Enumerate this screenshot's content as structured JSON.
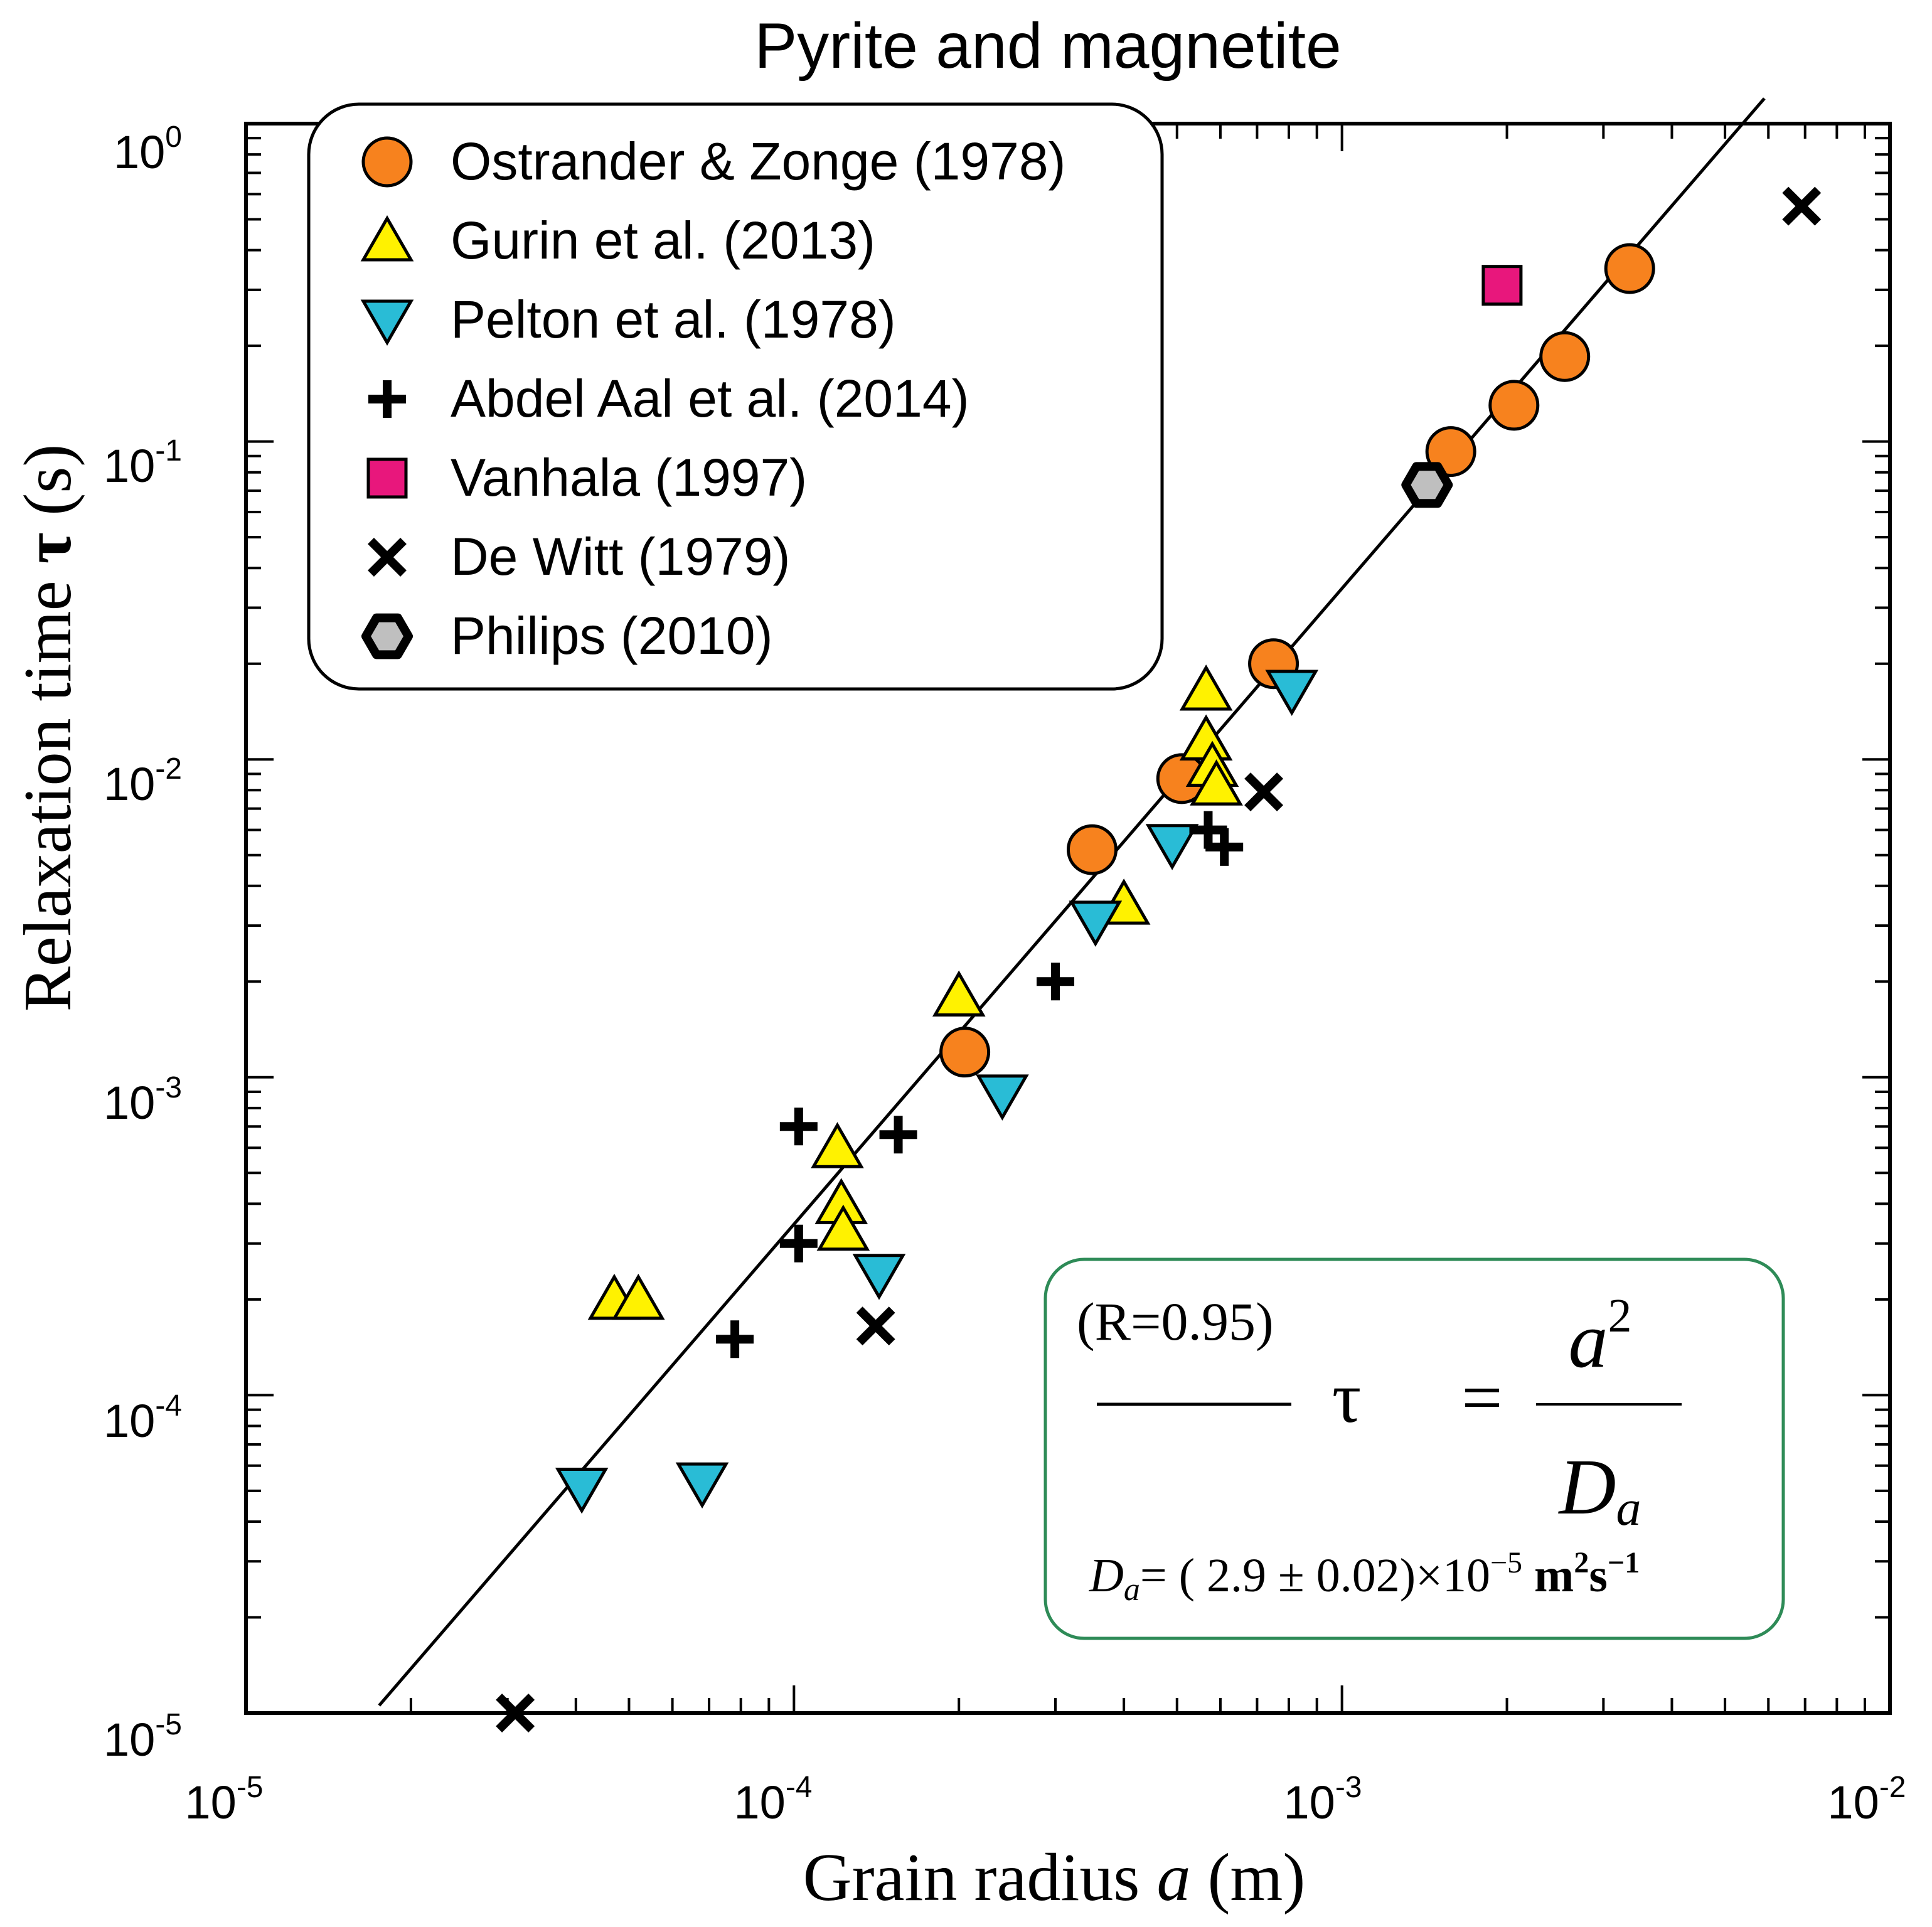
{
  "chart_data": {
    "type": "scatter",
    "title": "Pyrite and magnetite",
    "xlabel_main": "Grain radius",
    "xlabel_var": "a",
    "xlabel_unit": "(m)",
    "ylabel_main": "Relaxation time",
    "ylabel_var": "τ",
    "ylabel_unit": "(s)",
    "x_scale": "log",
    "y_scale": "log",
    "xlim": [
      1e-05,
      0.01
    ],
    "ylim": [
      1e-05,
      1
    ],
    "x_ticks": [
      {
        "value": 1e-05,
        "base": "10",
        "exp": "-5"
      },
      {
        "value": 0.0001,
        "base": "10",
        "exp": "-4"
      },
      {
        "value": 0.001,
        "base": "10",
        "exp": "-3"
      },
      {
        "value": 0.01,
        "base": "10",
        "exp": "-2"
      }
    ],
    "y_ticks": [
      {
        "value": 1,
        "base": "10",
        "exp": "0"
      },
      {
        "value": 0.1,
        "base": "10",
        "exp": "-1"
      },
      {
        "value": 0.01,
        "base": "10",
        "exp": "-2"
      },
      {
        "value": 0.001,
        "base": "10",
        "exp": "-3"
      },
      {
        "value": 0.0001,
        "base": "10",
        "exp": "-4"
      },
      {
        "value": 1e-05,
        "base": "10",
        "exp": "-5"
      }
    ],
    "series": [
      {
        "name": "Ostrander & Zonge (1978)",
        "marker": "circle",
        "fill": "#F7821E",
        "points": [
          [
            0.00335,
            0.35
          ],
          [
            0.00255,
            0.185
          ],
          [
            0.00206,
            0.13
          ],
          [
            0.00158,
            0.093
          ],
          [
            0.00075,
            0.02
          ],
          [
            0.00051,
            0.0087
          ],
          [
            0.00035,
            0.0052
          ],
          [
            0.000205,
            0.0012
          ]
        ]
      },
      {
        "name": "Gurin et al. (2013)",
        "marker": "triangle-up",
        "fill": "#FFF200",
        "points": [
          [
            0.000565,
            0.0165
          ],
          [
            0.000565,
            0.0115
          ],
          [
            0.00058,
            0.0095
          ],
          [
            0.00059,
            0.0083
          ],
          [
            0.0004,
            0.0035
          ],
          [
            0.0002,
            0.0018
          ],
          [
            0.00012,
            0.0006
          ],
          [
            0.000122,
            0.0004
          ],
          [
            0.000123,
            0.00033
          ],
          [
            4.7e-05,
            0.0002
          ],
          [
            5.2e-05,
            0.0002
          ]
        ]
      },
      {
        "name": "Pelton et al. (1978)",
        "marker": "triangle-down",
        "fill": "#29BCD6",
        "points": [
          [
            0.00081,
            0.0165
          ],
          [
            0.00049,
            0.0054
          ],
          [
            0.000355,
            0.0031
          ],
          [
            0.00024,
            0.00088
          ],
          [
            0.000143,
            0.00024
          ],
          [
            6.8e-05,
            5.3e-05
          ],
          [
            4.1e-05,
            5.1e-05
          ]
        ]
      },
      {
        "name": "Abdel Aal et al. (2014)",
        "marker": "plus",
        "fill": "#000000",
        "points": [
          [
            0.00057,
            0.006
          ],
          [
            0.00061,
            0.0053
          ],
          [
            0.0003,
            0.002
          ],
          [
            0.000102,
            0.0007
          ],
          [
            0.000155,
            0.00066
          ],
          [
            0.000102,
            0.0003
          ],
          [
            7.8e-05,
            0.00015
          ]
        ]
      },
      {
        "name": "Vanhala (1997)",
        "marker": "square",
        "fill": "#E8177C",
        "points": [
          [
            0.00196,
            0.31
          ]
        ]
      },
      {
        "name": "De Witt (1979)",
        "marker": "x",
        "fill": "#000000",
        "points": [
          [
            0.0069,
            0.55
          ],
          [
            0.00072,
            0.0079
          ],
          [
            0.000141,
            0.000165
          ],
          [
            3.1e-05,
            1e-05
          ]
        ]
      },
      {
        "name": "Philips (2010)",
        "marker": "hexagon",
        "fill": "#BFBFBF",
        "points": [
          [
            0.00143,
            0.073
          ]
        ]
      }
    ],
    "fit": {
      "label": "(R=0.95)",
      "equation_lhs": "τ",
      "equation_eq": "=",
      "equation_num_base": "a",
      "equation_num_exp": "2",
      "equation_den_base": "D",
      "equation_den_sub": "a",
      "D_value_text": "= ( 2.9 ± 0.02)×10",
      "D_exp": "−5",
      "D_unit_m": "m",
      "D_unit_m_exp": "2",
      "D_unit_s": "s",
      "D_unit_s_exp": "−1",
      "Da_m2_per_s": 2.9e-05,
      "line_x_range": [
        1.75e-05,
        0.0059
      ],
      "line_color": "#000000",
      "box_color": "#2E8B57"
    },
    "legend_position": "top-left"
  }
}
